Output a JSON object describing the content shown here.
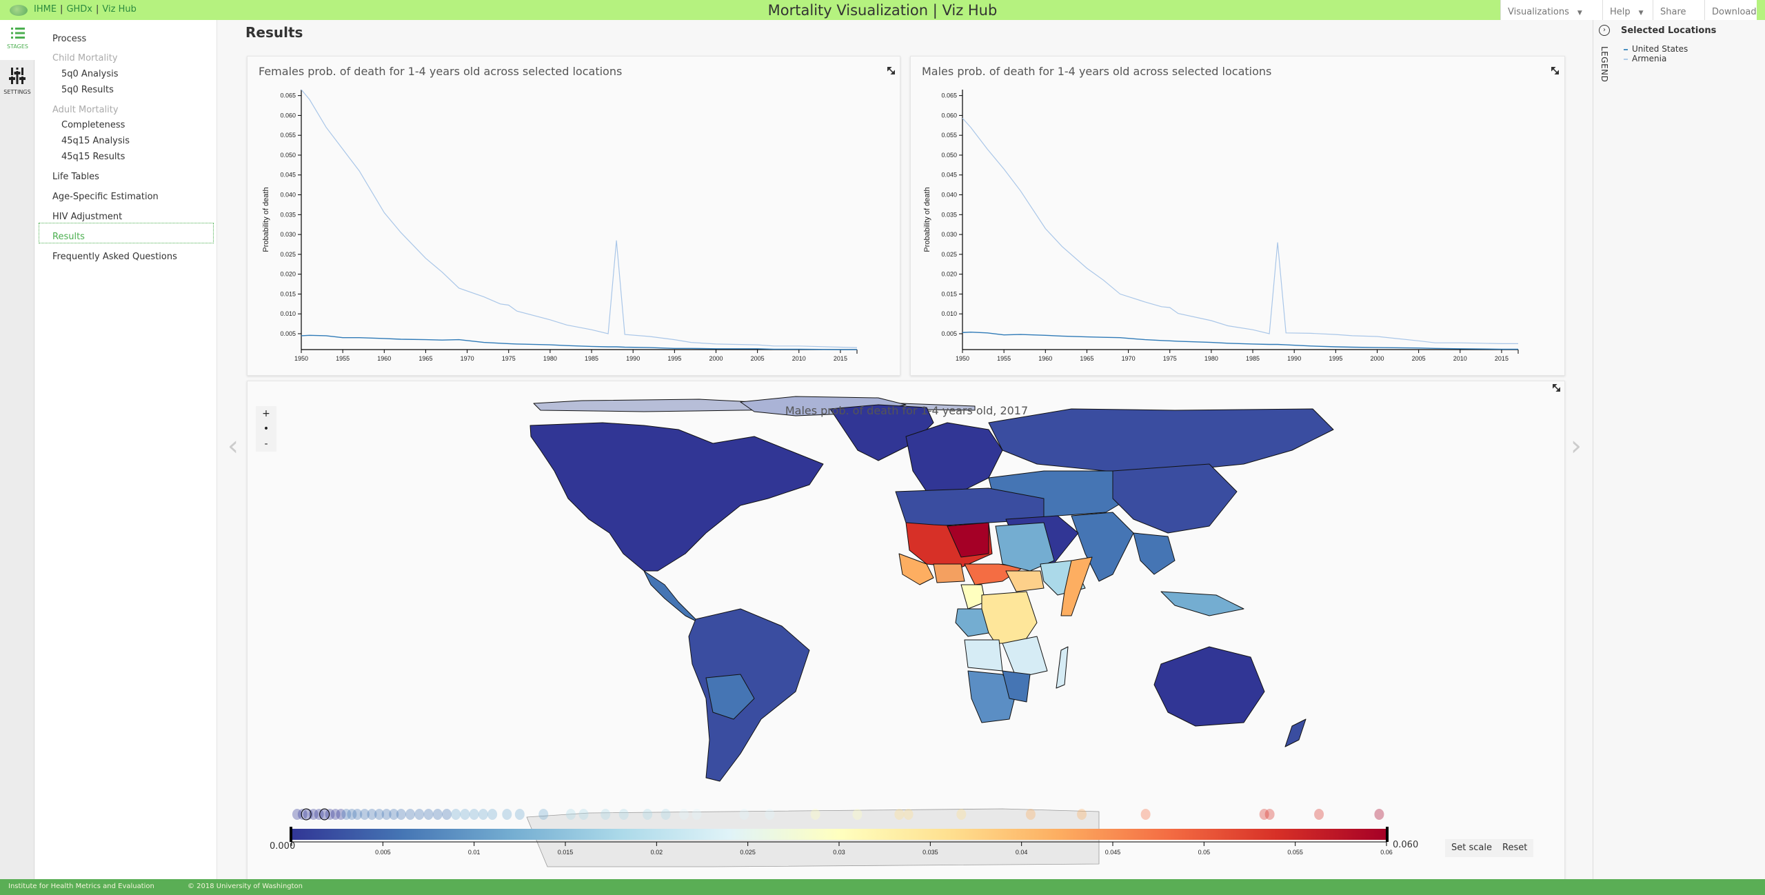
{
  "header": {
    "brand": [
      "IHME",
      "GHDx",
      "Viz Hub"
    ],
    "title": "Mortality Visualization | Viz Hub",
    "nav": [
      {
        "label": "Visualizations",
        "dropdown": true
      },
      {
        "label": "Help",
        "dropdown": true
      },
      {
        "label": "Share",
        "dropdown": false
      },
      {
        "label": "Download",
        "dropdown": false
      }
    ],
    "caret": "▼"
  },
  "rail": {
    "stages_label": "STAGES",
    "settings_label": "SETTINGS"
  },
  "stages": {
    "items": [
      {
        "label": "Process",
        "type": "item"
      },
      {
        "label": "Child Mortality",
        "type": "group"
      },
      {
        "label": "5q0 Analysis",
        "type": "sub"
      },
      {
        "label": "5q0 Results",
        "type": "sub"
      },
      {
        "label": "Adult Mortality",
        "type": "group"
      },
      {
        "label": "Completeness",
        "type": "sub"
      },
      {
        "label": "45q15 Analysis",
        "type": "sub"
      },
      {
        "label": "45q15 Results",
        "type": "sub"
      },
      {
        "label": "Life Tables",
        "type": "item"
      },
      {
        "label": "Age-Specific Estimation",
        "type": "item"
      },
      {
        "label": "HIV Adjustment",
        "type": "item"
      },
      {
        "label": "Results",
        "type": "item",
        "selected": true
      },
      {
        "label": "Frequently Asked Questions",
        "type": "item"
      }
    ]
  },
  "main": {
    "page_title": "Results",
    "map": {
      "title": "Males prob. of death for 1-4 years old, 2017",
      "zoom_in": "+",
      "zoom_reset": "•",
      "zoom_out": "-",
      "scale_min": "0.000",
      "scale_max": "0.060",
      "scale_ticks": [
        "0.005",
        "0.01",
        "0.015",
        "0.02",
        "0.025",
        "0.03",
        "0.035",
        "0.04",
        "0.045",
        "0.05",
        "0.055",
        "0.06"
      ],
      "set_scale_label": "Set scale",
      "reset_label": "Reset",
      "prev_arrow": "‹",
      "next_arrow": "›"
    }
  },
  "legend": {
    "vertical_label": "LEGEND",
    "toggle": "›",
    "title": "Selected Locations",
    "items": [
      {
        "label": "United States",
        "color": "#4a90c2"
      },
      {
        "label": "Armenia",
        "color": "#b0cce8"
      }
    ]
  },
  "footer": {
    "org": "Institute for Health Metrics and Evaluation",
    "copyright": "© 2018 University of Washington"
  },
  "colors": {
    "header_green": "#b5f27f",
    "footer_green": "#5aae55",
    "accent_green": "#4caf50",
    "us_line": "#2f7ab7",
    "armenia_line": "#a9c6e8"
  },
  "chart_data": [
    {
      "type": "line",
      "title": "Females prob. of death for 1-4 years old across selected locations",
      "xlabel": "",
      "ylabel": "Probability of death",
      "xlim": [
        1950,
        2017
      ],
      "ylim": [
        0.001,
        0.0665
      ],
      "x_ticks": [
        1950,
        1955,
        1960,
        1965,
        1970,
        1975,
        1980,
        1985,
        1990,
        1995,
        2000,
        2005,
        2010,
        2015
      ],
      "y_ticks": [
        "0.005",
        "0.010",
        "0.015",
        "0.020",
        "0.025",
        "0.030",
        "0.035",
        "0.040",
        "0.045",
        "0.050",
        "0.055",
        "0.060",
        "0.065"
      ],
      "grid": false,
      "x": [
        1950,
        1951,
        1953,
        1955,
        1957,
        1960,
        1962,
        1965,
        1967,
        1969,
        1972,
        1974,
        1975,
        1976,
        1980,
        1982,
        1985,
        1987,
        1988,
        1989,
        1992,
        1995,
        1997,
        2000,
        2005,
        2007,
        2010,
        2015,
        2017
      ],
      "series": [
        {
          "name": "Armenia",
          "values": [
            0.0665,
            0.064,
            0.057,
            0.0515,
            0.046,
            0.0355,
            0.0305,
            0.024,
            0.0205,
            0.0165,
            0.0143,
            0.0125,
            0.0122,
            0.0107,
            0.0085,
            0.0072,
            0.006,
            0.005,
            0.0285,
            0.0048,
            0.0043,
            0.0035,
            0.0028,
            0.0024,
            0.0022,
            0.0019,
            0.0019,
            0.0016,
            0.0015
          ]
        },
        {
          "name": "United States",
          "values": [
            0.0045,
            0.0046,
            0.0045,
            0.004,
            0.004,
            0.0038,
            0.0036,
            0.0035,
            0.0034,
            0.0035,
            0.0028,
            0.0026,
            0.0025,
            0.0024,
            0.0022,
            0.002,
            0.0018,
            0.0017,
            0.0017,
            0.0016,
            0.0015,
            0.0013,
            0.0013,
            0.0012,
            0.0012,
            0.0011,
            0.0011,
            0.001,
            0.001
          ]
        }
      ]
    },
    {
      "type": "line",
      "title": "Males prob. of death for 1-4 years old across selected locations",
      "xlabel": "",
      "ylabel": "Probability of death",
      "xlim": [
        1950,
        2017
      ],
      "ylim": [
        0.001,
        0.0665
      ],
      "x_ticks": [
        1950,
        1955,
        1960,
        1965,
        1970,
        1975,
        1980,
        1985,
        1990,
        1995,
        2000,
        2005,
        2010,
        2015
      ],
      "y_ticks": [
        "0.005",
        "0.010",
        "0.015",
        "0.020",
        "0.025",
        "0.030",
        "0.035",
        "0.040",
        "0.045",
        "0.050",
        "0.055",
        "0.060",
        "0.065"
      ],
      "grid": false,
      "x": [
        1950,
        1951,
        1953,
        1955,
        1957,
        1960,
        1962,
        1965,
        1967,
        1969,
        1972,
        1974,
        1975,
        1976,
        1980,
        1982,
        1985,
        1987,
        1988,
        1989,
        1992,
        1995,
        1997,
        2000,
        2005,
        2007,
        2010,
        2015,
        2017
      ],
      "series": [
        {
          "name": "Armenia",
          "values": [
            0.0593,
            0.057,
            0.0515,
            0.0465,
            0.041,
            0.0315,
            0.027,
            0.0215,
            0.0185,
            0.015,
            0.013,
            0.0118,
            0.0116,
            0.0101,
            0.0083,
            0.007,
            0.006,
            0.005,
            0.028,
            0.0052,
            0.0051,
            0.0048,
            0.0045,
            0.0043,
            0.0032,
            0.0027,
            0.0027,
            0.0025,
            0.0025
          ]
        },
        {
          "name": "United States",
          "values": [
            0.0053,
            0.0054,
            0.0052,
            0.0047,
            0.0048,
            0.0046,
            0.0044,
            0.0042,
            0.0041,
            0.004,
            0.0035,
            0.0033,
            0.0032,
            0.0031,
            0.0028,
            0.0026,
            0.0024,
            0.0023,
            0.0023,
            0.0022,
            0.0019,
            0.0017,
            0.0016,
            0.0015,
            0.0014,
            0.0013,
            0.0012,
            0.0011,
            0.0011
          ]
        }
      ]
    },
    {
      "type": "heatmap",
      "subtype": "choropleth",
      "title": "Males prob. of death for 1-4 years old, 2017",
      "scale_range": [
        0.0,
        0.06
      ],
      "scale_ticks": [
        0.005,
        0.01,
        0.015,
        0.02,
        0.025,
        0.03,
        0.035,
        0.04,
        0.045,
        0.05,
        0.055,
        0.06
      ],
      "colormap": [
        "#313695",
        "#4575b4",
        "#74add1",
        "#abd9e9",
        "#e0f3f8",
        "#ffffbf",
        "#fee090",
        "#fdae61",
        "#f46d43",
        "#d73027",
        "#a50026"
      ],
      "highlights": [
        {
          "region": "Niger / Mali / Chad / CAR",
          "level": "high (0.05-0.06)"
        },
        {
          "region": "Nigeria / Somalia / South Sudan",
          "level": "mid-high (0.035-0.045)"
        },
        {
          "region": "DR Congo / Cameroon",
          "level": "mid (0.03)"
        },
        {
          "region": "Americas / Europe / Russia / Australia",
          "level": "low (<0.005)"
        }
      ]
    }
  ]
}
